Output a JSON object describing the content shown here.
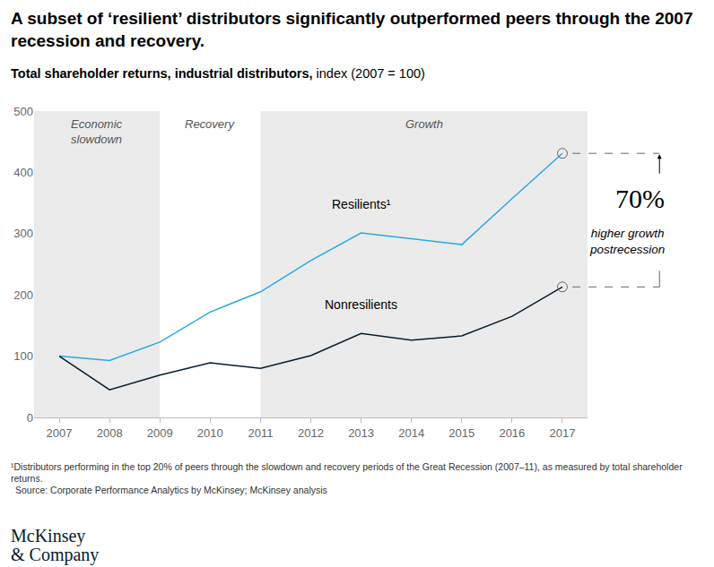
{
  "chart_data": {
    "type": "line",
    "title": "A subset of ‘resilient’ distributors significantly outperformed peers through the 2007 recession and recovery.",
    "subtitle": {
      "bold": "Total shareholder returns, industrial distributors,",
      "text": "index (2007 = 100)"
    },
    "x": [
      2007,
      2008,
      2009,
      2010,
      2011,
      2012,
      2013,
      2014,
      2015,
      2016,
      2017
    ],
    "series": [
      {
        "name": "Resilients¹",
        "color": "#2aa8e2",
        "values": [
          100,
          93,
          123,
          172,
          205,
          256,
          301,
          291,
          282,
          357,
          431
        ]
      },
      {
        "name": "Nonresilients",
        "color": "#051c2c",
        "values": [
          100,
          45,
          69,
          89,
          80,
          101,
          137,
          126,
          133,
          165,
          213
        ]
      }
    ],
    "xlim": [
      2006.5,
      2017.5
    ],
    "xticks": [
      2007,
      2008,
      2009,
      2010,
      2011,
      2012,
      2013,
      2014,
      2015,
      2016,
      2017
    ],
    "ylim": [
      0,
      500
    ],
    "yticks": [
      0,
      100,
      200,
      300,
      400,
      500
    ],
    "grid": false,
    "phases": [
      {
        "label": [
          "Economic",
          "slowdown"
        ],
        "start": 2006.5,
        "end": 2009,
        "color": "#ebebeb"
      },
      {
        "label": [
          "Recovery"
        ],
        "start": 2009,
        "end": 2011,
        "color": "#ffffff"
      },
      {
        "label": [
          "Growth"
        ],
        "start": 2011,
        "end": 2017.5,
        "color": "#ebebeb"
      }
    ],
    "callout": {
      "label": "70%",
      "text": [
        "higher growth",
        "postrecession"
      ]
    },
    "footnote": "¹Distributors performing in the top 20% of peers through the slowdown and recovery periods of the Great Recession (2007–11), as measured by total shareholder returns.",
    "source": "Source: Corporate Performance Analytics by McKinsey; McKinsey analysis",
    "logo": [
      "McKinsey",
      "& Company"
    ]
  }
}
